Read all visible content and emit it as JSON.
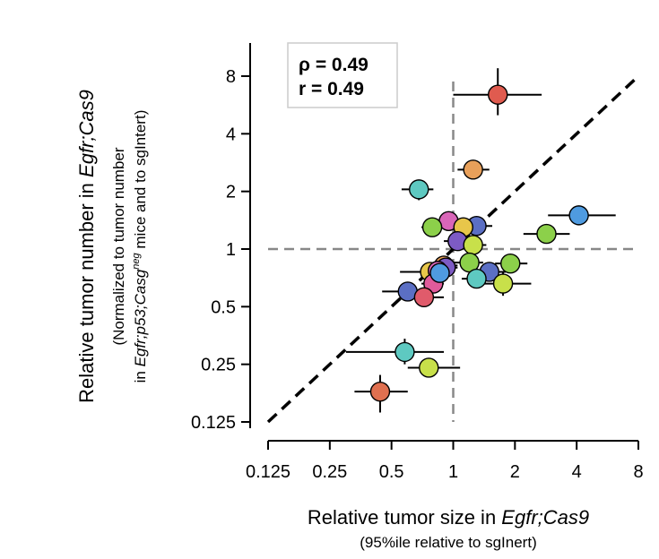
{
  "chart_data": {
    "type": "scatter",
    "xscale": "log2",
    "yscale": "log2",
    "xlim": [
      0.125,
      8
    ],
    "ylim": [
      0.125,
      8
    ],
    "x_ticks": [
      0.125,
      0.25,
      0.5,
      1,
      2,
      4,
      8
    ],
    "x_tick_labels": [
      "0.125",
      "0.25",
      "0.5",
      "1",
      "2",
      "4",
      "8"
    ],
    "y_ticks": [
      0.125,
      0.25,
      0.5,
      1,
      2,
      4,
      8
    ],
    "y_tick_labels": [
      "0.125",
      "0.25",
      "0.5",
      "1",
      "2",
      "4",
      "8"
    ],
    "xlabel": {
      "main": "Relative tumor size in ",
      "main_italic": "Egfr;Cas9",
      "sub": "(95%ile relative to sgInert)"
    },
    "ylabel": {
      "main": "Relative tumor number in ",
      "main_italic": "Egfr;Cas9",
      "sub1": "(Normalized to tumor number",
      "sub2_prefix": "in ",
      "sub2_italic": "Egfr;p53;Casg",
      "sub2_sup": "neg",
      "sub2_suffix": " mice and to sgIntert)"
    },
    "annotations": {
      "rho": "ρ = 0.49",
      "r": "r = 0.49"
    },
    "reference_lines": {
      "identity": true,
      "x_equals": 1,
      "y_equals": 1
    },
    "points": [
      {
        "x": 1.65,
        "y": 6.4,
        "xerr": [
          1.0,
          2.7
        ],
        "yerr": [
          5.0,
          8.8
        ],
        "color": "#e05b4f"
      },
      {
        "x": 1.25,
        "y": 2.6,
        "xerr": [
          1.05,
          1.5
        ],
        "yerr": null,
        "color": "#e8a05a"
      },
      {
        "x": 0.68,
        "y": 2.05,
        "xerr": [
          0.56,
          0.8
        ],
        "yerr": [
          1.8,
          2.3
        ],
        "color": "#5ec9c1"
      },
      {
        "x": 4.1,
        "y": 1.5,
        "xerr": [
          2.9,
          6.2
        ],
        "yerr": null,
        "color": "#4f9be0"
      },
      {
        "x": 2.85,
        "y": 1.2,
        "xerr": [
          2.2,
          3.7
        ],
        "yerr": null,
        "color": "#8cd04a"
      },
      {
        "x": 1.3,
        "y": 1.32,
        "xerr": [
          1.05,
          1.55
        ],
        "yerr": null,
        "color": "#5b6fc4"
      },
      {
        "x": 0.95,
        "y": 1.4,
        "xerr": [
          0.85,
          1.05
        ],
        "yerr": null,
        "color": "#d966b8"
      },
      {
        "x": 0.79,
        "y": 1.3,
        "xerr": [
          0.7,
          0.9
        ],
        "yerr": null,
        "color": "#8cd04a"
      },
      {
        "x": 1.12,
        "y": 1.3,
        "xerr": [
          0.95,
          1.3
        ],
        "yerr": null,
        "color": "#e8c64a"
      },
      {
        "x": 1.05,
        "y": 1.1,
        "xerr": [
          0.9,
          1.2
        ],
        "yerr": null,
        "color": "#7d5bc4"
      },
      {
        "x": 1.25,
        "y": 1.05,
        "xerr": [
          1.1,
          1.45
        ],
        "yerr": null,
        "color": "#c8e04a"
      },
      {
        "x": 1.9,
        "y": 0.84,
        "xerr": [
          1.6,
          2.3
        ],
        "yerr": null,
        "color": "#8cd04a"
      },
      {
        "x": 1.5,
        "y": 0.76,
        "xerr": [
          1.3,
          1.8
        ],
        "yerr": null,
        "color": "#5b6fc4"
      },
      {
        "x": 1.2,
        "y": 0.85,
        "xerr": [
          1.0,
          1.4
        ],
        "yerr": null,
        "color": "#8cd04a"
      },
      {
        "x": 1.75,
        "y": 0.66,
        "xerr": [
          1.3,
          2.4
        ],
        "yerr": [
          0.57,
          0.76
        ],
        "color": "#c8e04a"
      },
      {
        "x": 1.3,
        "y": 0.7,
        "xerr": [
          1.1,
          1.5
        ],
        "yerr": null,
        "color": "#5ec9c1"
      },
      {
        "x": 0.77,
        "y": 0.76,
        "xerr": [
          0.55,
          1.0
        ],
        "yerr": null,
        "color": "#e8c64a"
      },
      {
        "x": 0.9,
        "y": 0.82,
        "xerr": [
          0.75,
          1.05
        ],
        "yerr": null,
        "color": "#e8a05a"
      },
      {
        "x": 0.92,
        "y": 0.8,
        "xerr": [
          0.8,
          1.05
        ],
        "yerr": null,
        "color": "#7d5bc4"
      },
      {
        "x": 0.84,
        "y": 0.77,
        "xerr": [
          0.72,
          0.98
        ],
        "yerr": null,
        "color": "#d966b8"
      },
      {
        "x": 0.8,
        "y": 0.66,
        "xerr": [
          0.7,
          0.9
        ],
        "yerr": null,
        "color": "#e05b9b"
      },
      {
        "x": 0.86,
        "y": 0.75,
        "xerr": [
          0.74,
          1.0
        ],
        "yerr": null,
        "color": "#4f9be0"
      },
      {
        "x": 0.6,
        "y": 0.6,
        "xerr": [
          0.45,
          0.75
        ],
        "yerr": null,
        "color": "#5b6fc4"
      },
      {
        "x": 0.72,
        "y": 0.56,
        "xerr": [
          0.55,
          0.9
        ],
        "yerr": [
          0.5,
          0.63
        ],
        "color": "#e05b6b"
      },
      {
        "x": 0.58,
        "y": 0.29,
        "xerr": [
          0.3,
          0.9
        ],
        "yerr": [
          0.25,
          0.34
        ],
        "color": "#5ec9c1"
      },
      {
        "x": 0.76,
        "y": 0.24,
        "xerr": [
          0.6,
          1.08
        ],
        "yerr": null,
        "color": "#c8e04a"
      },
      {
        "x": 0.44,
        "y": 0.18,
        "xerr": [
          0.33,
          0.6
        ],
        "yerr": [
          0.14,
          0.22
        ],
        "color": "#e07050"
      }
    ]
  }
}
